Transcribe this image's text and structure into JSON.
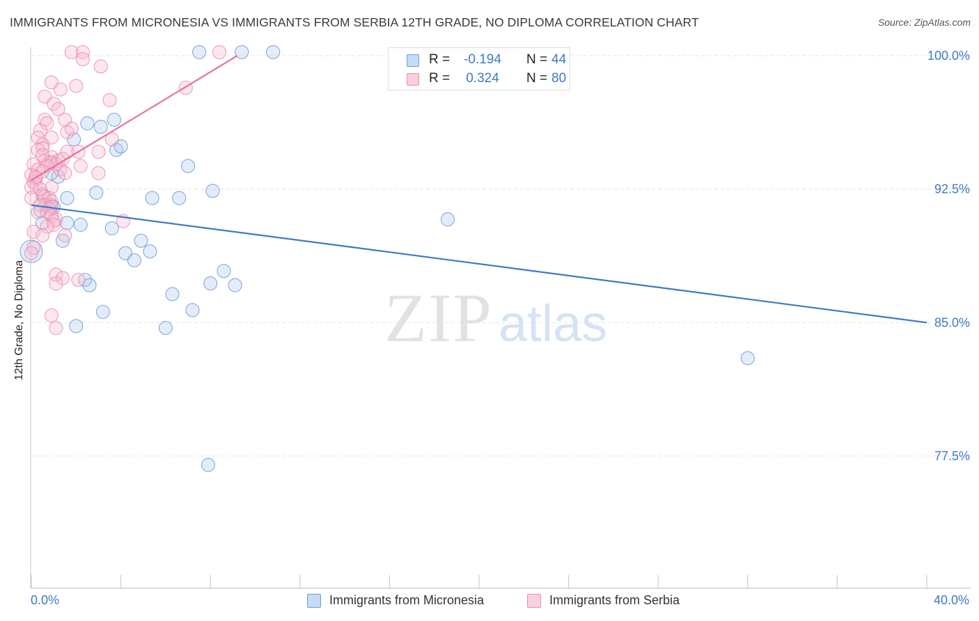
{
  "title": "IMMIGRANTS FROM MICRONESIA VS IMMIGRANTS FROM SERBIA 12TH GRADE, NO DIPLOMA CORRELATION CHART",
  "source": "Source: ZipAtlas.com",
  "colors": {
    "blue": "#3d79c8",
    "blue_fill": "#aecbf0",
    "pink": "#e8729b",
    "pink_fill": "#f6b9cd",
    "grid": "#e3e3e3",
    "axis": "#cccccc"
  },
  "legend": {
    "rows": [
      {
        "r_label": "R =",
        "r_value": "-0.194",
        "n_label": "N =",
        "n_value": "44"
      },
      {
        "r_label": "R =",
        "r_value": "0.324",
        "n_label": "N =",
        "n_value": "80"
      }
    ]
  },
  "watermark": {
    "zip": "ZIP",
    "atlas": "atlas"
  },
  "chart_data": {
    "type": "scatter",
    "title": "IMMIGRANTS FROM MICRONESIA VS IMMIGRANTS FROM SERBIA 12TH GRADE, NO DIPLOMA CORRELATION CHART",
    "xlabel": "",
    "ylabel": "12th Grade, No Diploma",
    "xlim": [
      0,
      40
    ],
    "ylim": [
      70.5,
      101.5
    ],
    "x_tick_labels": [
      "0.0%",
      "40.0%"
    ],
    "y_ticks": [
      77.5,
      85.0,
      92.5,
      100.0
    ],
    "y_tick_labels": [
      "77.5%",
      "85.0%",
      "92.5%",
      "100.0%"
    ],
    "grid": true,
    "series": [
      {
        "name": "Immigrants from Micronesia",
        "color": "#3d79c8",
        "trend": {
          "x1": 0,
          "y1": 91.6,
          "x2": 40,
          "y2": 85.0
        },
        "points": [
          [
            7.5,
            100.2
          ],
          [
            9.4,
            100.2
          ],
          [
            10.8,
            100.2
          ],
          [
            2.5,
            96.2
          ],
          [
            3.1,
            96.0
          ],
          [
            3.7,
            96.4
          ],
          [
            1.9,
            95.3
          ],
          [
            3.8,
            94.7
          ],
          [
            4.0,
            94.9
          ],
          [
            7.0,
            93.8
          ],
          [
            1.2,
            93.2
          ],
          [
            0.9,
            93.4
          ],
          [
            2.9,
            92.3
          ],
          [
            1.6,
            92.0
          ],
          [
            5.4,
            92.0
          ],
          [
            6.6,
            92.0
          ],
          [
            8.1,
            92.4
          ],
          [
            0.5,
            92.2
          ],
          [
            0.9,
            91.6
          ],
          [
            0.4,
            91.3
          ],
          [
            18.6,
            90.8
          ],
          [
            1.6,
            90.6
          ],
          [
            2.2,
            90.5
          ],
          [
            3.6,
            90.3
          ],
          [
            1.4,
            89.6
          ],
          [
            4.9,
            89.6
          ],
          [
            4.2,
            88.9
          ],
          [
            5.3,
            89.0
          ],
          [
            4.6,
            88.5
          ],
          [
            0.0,
            89.0
          ],
          [
            8.6,
            87.9
          ],
          [
            2.4,
            87.4
          ],
          [
            2.6,
            87.1
          ],
          [
            8.0,
            87.2
          ],
          [
            9.1,
            87.1
          ],
          [
            6.3,
            86.6
          ],
          [
            3.2,
            85.6
          ],
          [
            7.2,
            85.7
          ],
          [
            2.0,
            84.8
          ],
          [
            6.0,
            84.7
          ],
          [
            32.0,
            83.0
          ],
          [
            7.9,
            77.0
          ],
          [
            0.5,
            90.6
          ],
          [
            1.0,
            91.5
          ]
        ]
      },
      {
        "name": "Immigrants from Serbia",
        "color": "#e8729b",
        "trend": {
          "x1": 0,
          "y1": 93.0,
          "x2": 9.2,
          "y2": 100.0
        },
        "points": [
          [
            1.8,
            100.2
          ],
          [
            2.3,
            100.2
          ],
          [
            8.4,
            100.2
          ],
          [
            2.3,
            99.8
          ],
          [
            3.1,
            99.4
          ],
          [
            0.9,
            98.5
          ],
          [
            1.3,
            98.1
          ],
          [
            2.0,
            98.3
          ],
          [
            6.9,
            98.2
          ],
          [
            0.6,
            97.7
          ],
          [
            3.5,
            97.5
          ],
          [
            1.0,
            97.3
          ],
          [
            1.2,
            97.0
          ],
          [
            0.6,
            96.4
          ],
          [
            0.7,
            96.2
          ],
          [
            1.5,
            96.4
          ],
          [
            0.4,
            95.8
          ],
          [
            1.6,
            95.7
          ],
          [
            1.8,
            95.9
          ],
          [
            0.3,
            95.4
          ],
          [
            0.9,
            95.4
          ],
          [
            3.6,
            95.3
          ],
          [
            0.5,
            95.0
          ],
          [
            0.5,
            94.8
          ],
          [
            0.3,
            94.7
          ],
          [
            1.6,
            94.6
          ],
          [
            2.1,
            94.6
          ],
          [
            3.0,
            94.6
          ],
          [
            0.9,
            94.3
          ],
          [
            1.2,
            94.1
          ],
          [
            0.6,
            94.1
          ],
          [
            0.8,
            94.0
          ],
          [
            0.9,
            94.0
          ],
          [
            1.1,
            93.9
          ],
          [
            0.7,
            93.8
          ],
          [
            2.2,
            93.8
          ],
          [
            0.1,
            93.9
          ],
          [
            1.3,
            93.6
          ],
          [
            0.3,
            93.6
          ],
          [
            0.5,
            93.5
          ],
          [
            3.0,
            93.4
          ],
          [
            0.0,
            93.3
          ],
          [
            1.5,
            93.4
          ],
          [
            0.2,
            93.1
          ],
          [
            0.1,
            92.9
          ],
          [
            0.2,
            92.8
          ],
          [
            0.0,
            92.6
          ],
          [
            0.9,
            92.6
          ],
          [
            0.5,
            92.1
          ],
          [
            0.6,
            92.1
          ],
          [
            0.8,
            92.0
          ],
          [
            0.0,
            92.0
          ],
          [
            0.9,
            91.8
          ],
          [
            0.6,
            91.6
          ],
          [
            0.9,
            91.5
          ],
          [
            0.4,
            91.6
          ],
          [
            0.8,
            91.4
          ],
          [
            0.3,
            91.2
          ],
          [
            0.7,
            91.2
          ],
          [
            0.9,
            91.0
          ],
          [
            1.1,
            90.8
          ],
          [
            1.0,
            90.7
          ],
          [
            4.1,
            90.7
          ],
          [
            1.0,
            90.5
          ],
          [
            0.7,
            90.4
          ],
          [
            0.1,
            90.1
          ],
          [
            0.5,
            89.9
          ],
          [
            1.5,
            89.9
          ],
          [
            0.1,
            89.2
          ],
          [
            0.0,
            88.9
          ],
          [
            1.1,
            87.7
          ],
          [
            1.4,
            87.5
          ],
          [
            2.1,
            87.4
          ],
          [
            1.1,
            87.2
          ],
          [
            0.9,
            85.4
          ],
          [
            1.1,
            84.7
          ],
          [
            0.5,
            94.4
          ],
          [
            1.4,
            94.2
          ],
          [
            0.2,
            93.2
          ],
          [
            0.4,
            92.5
          ]
        ]
      }
    ]
  },
  "bottom_legend": [
    {
      "label": "Immigrants from Micronesia"
    },
    {
      "label": "Immigrants from Serbia"
    }
  ]
}
